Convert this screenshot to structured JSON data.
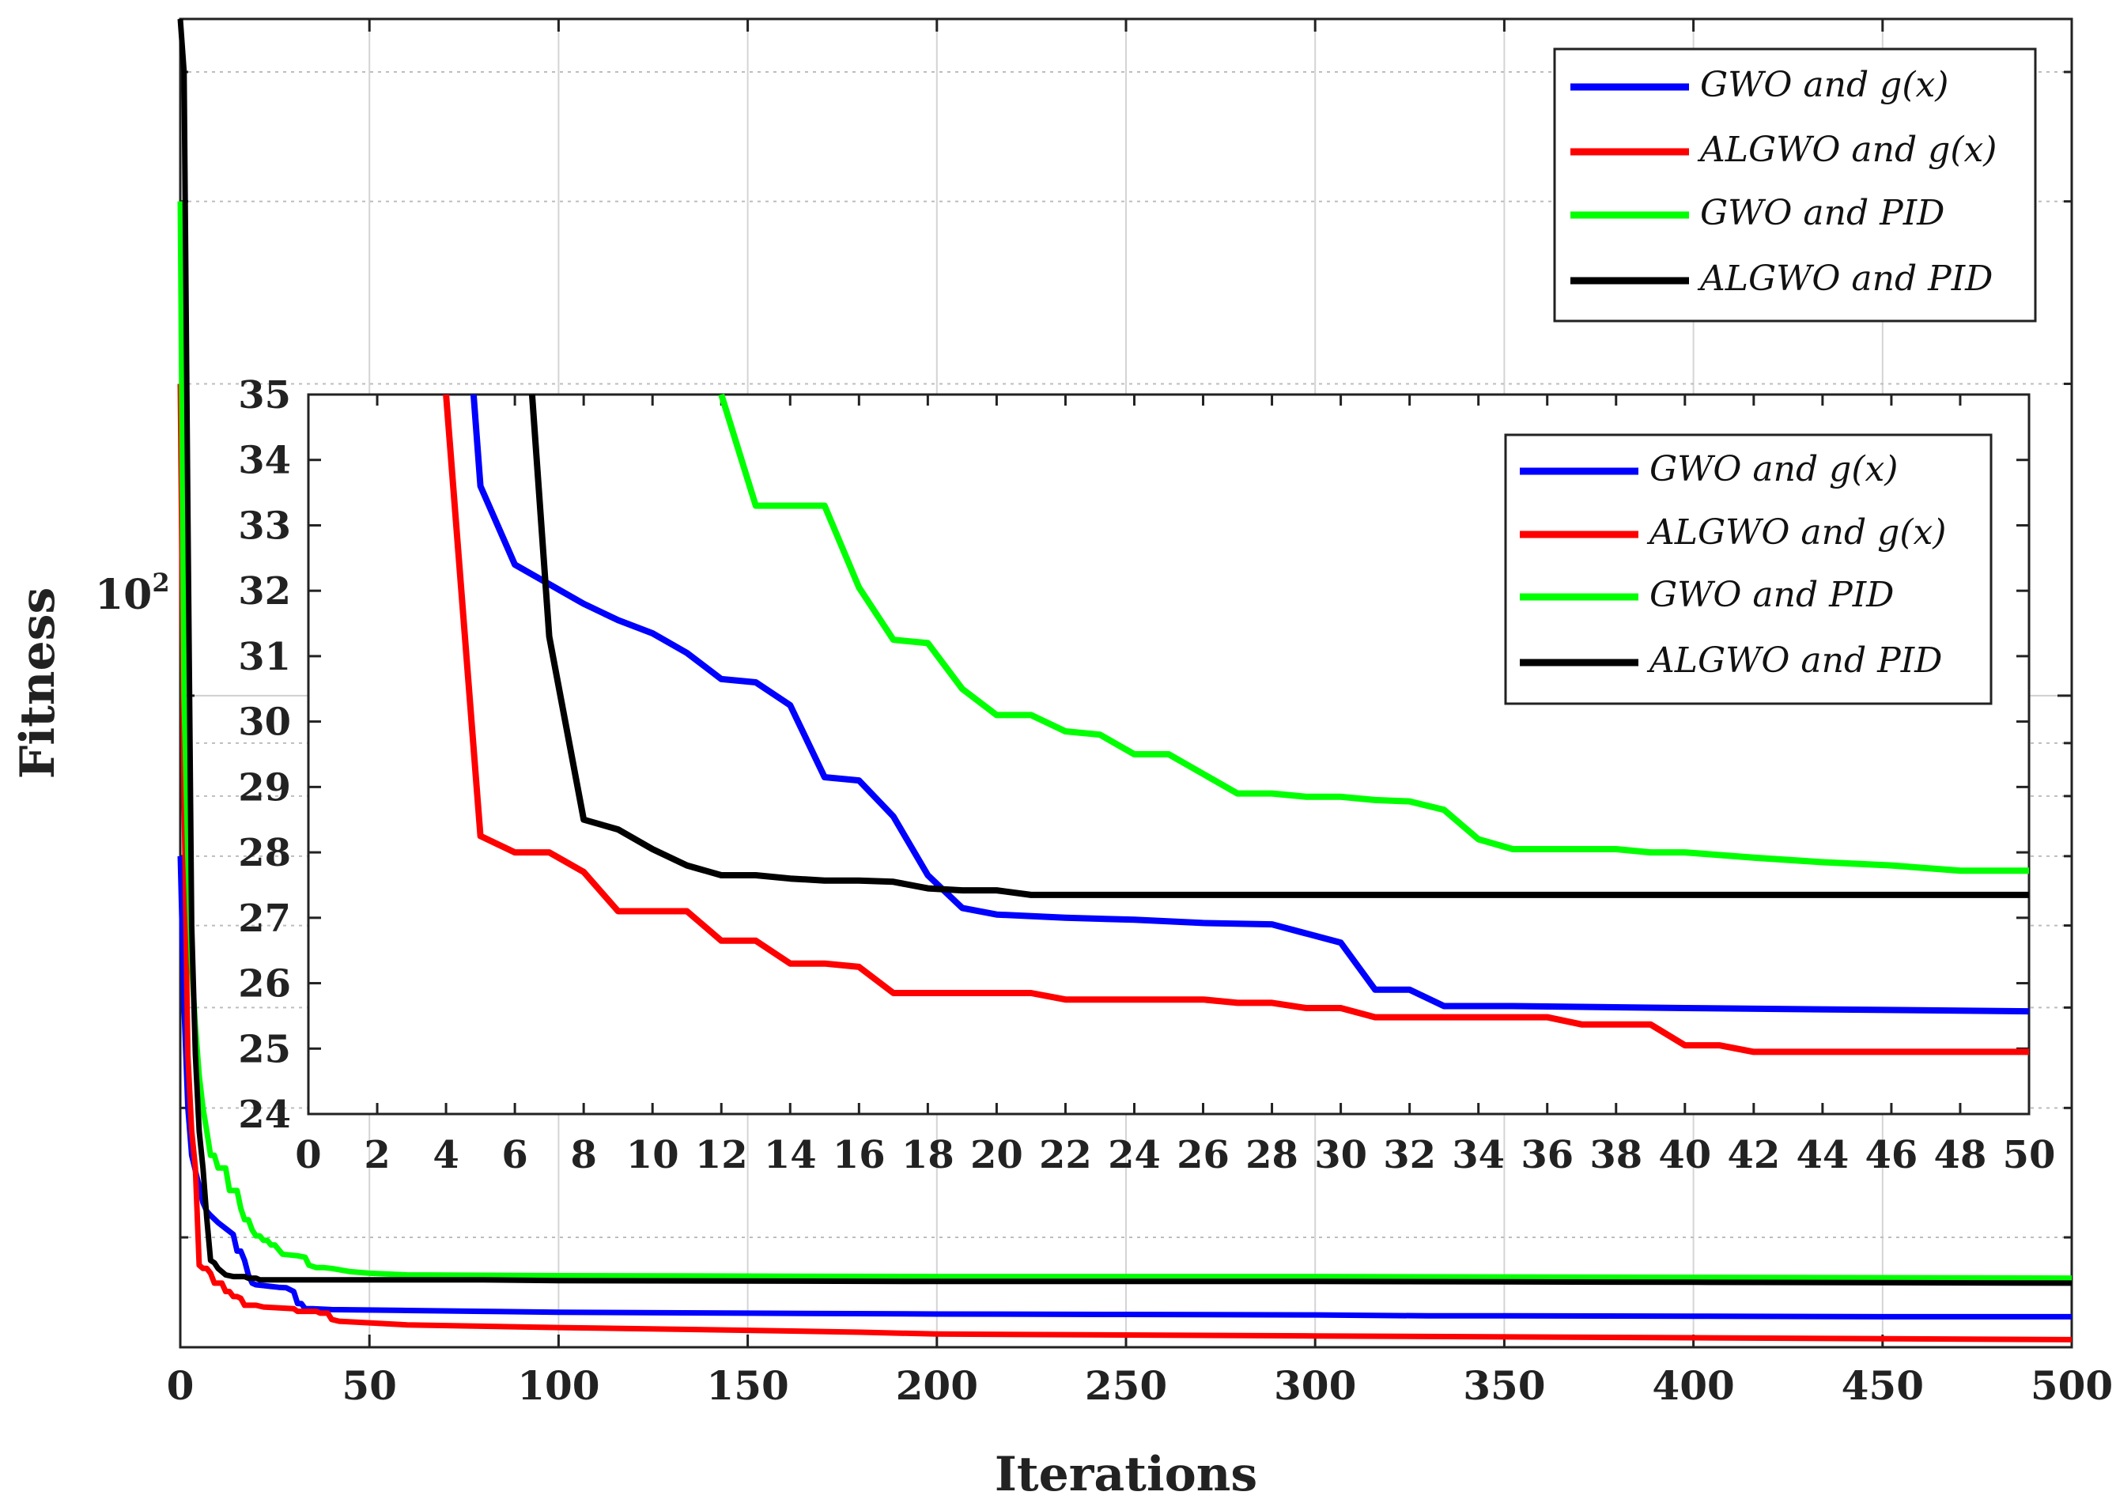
{
  "chart_data": [
    {
      "id": "main",
      "type": "line",
      "xlabel": "Iterations",
      "ylabel": "Fitness",
      "yscale": "log",
      "xlim": [
        0,
        500
      ],
      "ylim": [
        23.5,
        450
      ],
      "x_ticks": [
        0,
        50,
        100,
        150,
        200,
        250,
        300,
        350,
        400,
        450,
        500
      ],
      "y_tick_label": {
        "base": "10",
        "exp": "2"
      },
      "legend": [
        "GWO and g(x)",
        "ALGWO and g(x)",
        "GWO and PID",
        "ALGWO and PID"
      ],
      "legend_position": "top-right",
      "series": [
        {
          "name": "GWO and g(x)",
          "color": "#0000ff",
          "x": [
            0,
            1,
            2,
            3,
            5,
            6,
            7,
            8,
            10,
            12,
            14,
            15,
            16,
            17,
            18,
            19,
            20,
            22,
            24,
            26,
            28,
            30,
            31,
            32,
            33,
            35,
            40,
            60,
            80,
            100,
            150,
            200,
            250,
            300,
            330,
            350,
            400,
            450,
            500
          ],
          "y": [
            70,
            50,
            40,
            36,
            33.6,
            32.4,
            31.8,
            31.5,
            31.0,
            30.6,
            30.2,
            29.1,
            29.1,
            28.5,
            27.6,
            27.1,
            27.0,
            26.95,
            26.9,
            26.85,
            26.82,
            26.6,
            25.9,
            25.9,
            25.6,
            25.6,
            25.55,
            25.5,
            25.45,
            25.4,
            25.35,
            25.3,
            25.28,
            25.25,
            25.2,
            25.2,
            25.18,
            25.15,
            25.15
          ]
        },
        {
          "name": "ALGWO and g(x)",
          "color": "#ff0000",
          "x": [
            0,
            1,
            2,
            3,
            4,
            5,
            6,
            7,
            8,
            9,
            11,
            12,
            13,
            14,
            15,
            16,
            17,
            20,
            22,
            30,
            31,
            36,
            37,
            39,
            40,
            42,
            60,
            100,
            150,
            180,
            200,
            300,
            400,
            500
          ],
          "y": [
            200,
            80,
            45,
            38,
            35,
            28.2,
            28.0,
            28.0,
            27.7,
            27.1,
            27.1,
            26.6,
            26.6,
            26.3,
            26.3,
            26.2,
            25.8,
            25.8,
            25.7,
            25.6,
            25.45,
            25.45,
            25.35,
            25.35,
            25.0,
            24.9,
            24.7,
            24.55,
            24.4,
            24.3,
            24.2,
            24.1,
            24.0,
            23.9
          ]
        },
        {
          "name": "GWO and PID",
          "color": "#00ff00",
          "x": [
            0,
            1,
            2,
            3,
            4,
            5,
            6,
            7,
            8,
            9,
            10,
            11,
            12,
            13,
            15,
            16,
            17,
            18,
            19,
            20,
            21,
            22,
            23,
            24,
            25,
            27,
            29,
            31,
            33,
            34,
            36,
            38,
            40,
            45,
            50,
            60,
            100,
            200,
            300,
            400,
            500
          ],
          "y": [
            300,
            100,
            70,
            55,
            48,
            43,
            40,
            38,
            36,
            36,
            35,
            35,
            35,
            33.3,
            33.3,
            32.0,
            31.2,
            31.2,
            30.5,
            30.1,
            30.1,
            29.8,
            29.8,
            29.5,
            29.5,
            28.9,
            28.85,
            28.8,
            28.7,
            28.2,
            28.05,
            28.05,
            28.0,
            27.8,
            27.7,
            27.6,
            27.55,
            27.5,
            27.5,
            27.45,
            27.4
          ]
        },
        {
          "name": "ALGWO and PID",
          "color": "#000000",
          "x": [
            0,
            1,
            2,
            3,
            4,
            5,
            6,
            7,
            8,
            9,
            10,
            11,
            12,
            14,
            17,
            18,
            20,
            21,
            30,
            50,
            80,
            100,
            200,
            300,
            400,
            500
          ],
          "y": [
            450,
            400,
            150,
            60,
            45,
            38,
            35,
            31.3,
            28.5,
            28.35,
            28.0,
            27.8,
            27.6,
            27.5,
            27.5,
            27.4,
            27.4,
            27.3,
            27.3,
            27.3,
            27.3,
            27.25,
            27.2,
            27.2,
            27.15,
            27.1
          ]
        }
      ]
    },
    {
      "id": "inset",
      "type": "line",
      "xlim": [
        0,
        50
      ],
      "ylim": [
        24,
        35
      ],
      "x_ticks": [
        0,
        2,
        4,
        6,
        8,
        10,
        12,
        14,
        16,
        18,
        20,
        22,
        24,
        26,
        28,
        30,
        32,
        34,
        36,
        38,
        40,
        42,
        44,
        46,
        48,
        50
      ],
      "y_ticks": [
        24,
        25,
        26,
        27,
        28,
        29,
        30,
        31,
        32,
        33,
        34,
        35
      ],
      "legend": [
        "GWO and g(x)",
        "ALGWO and g(x)",
        "GWO and PID",
        "ALGWO and PID"
      ],
      "legend_position": "top-right",
      "series": [
        {
          "name": "GWO and g(x)",
          "color": "#0000ff",
          "x": [
            4.8,
            5,
            6,
            7,
            8,
            9,
            10,
            11,
            12,
            13,
            14,
            15,
            16,
            17,
            18,
            19,
            20,
            22,
            24,
            26,
            28,
            30,
            31,
            32,
            33,
            35,
            40,
            50
          ],
          "y": [
            35,
            33.6,
            32.4,
            32.1,
            31.8,
            31.55,
            31.35,
            31.05,
            30.65,
            30.6,
            30.25,
            29.15,
            29.1,
            28.55,
            27.65,
            27.15,
            27.05,
            27.0,
            26.97,
            26.92,
            26.9,
            26.62,
            25.9,
            25.9,
            25.65,
            25.65,
            25.62,
            25.57
          ]
        },
        {
          "name": "ALGWO and g(x)",
          "color": "#ff0000",
          "x": [
            4,
            5,
            6,
            7,
            8,
            9,
            10,
            11,
            12,
            13,
            14,
            15,
            16,
            17,
            18,
            20,
            21,
            22,
            26,
            27,
            28,
            29,
            30,
            31,
            36,
            37,
            39,
            40,
            41,
            42,
            50
          ],
          "y": [
            35,
            28.25,
            28.0,
            28.0,
            27.7,
            27.1,
            27.1,
            27.1,
            26.65,
            26.65,
            26.3,
            26.3,
            26.25,
            25.85,
            25.85,
            25.85,
            25.85,
            25.75,
            25.75,
            25.7,
            25.7,
            25.62,
            25.62,
            25.48,
            25.48,
            25.37,
            25.37,
            25.05,
            25.05,
            24.95,
            24.95
          ]
        },
        {
          "name": "GWO and PID",
          "color": "#00ff00",
          "x": [
            12,
            13,
            14,
            15,
            16,
            17,
            18,
            19,
            20,
            21,
            22,
            23,
            24,
            25,
            26,
            27,
            28,
            29,
            30,
            31,
            32,
            33,
            34,
            35,
            38,
            39,
            40,
            42,
            44,
            46,
            48,
            50
          ],
          "y": [
            35,
            33.3,
            33.3,
            33.3,
            32.05,
            31.25,
            31.2,
            30.5,
            30.1,
            30.1,
            29.85,
            29.8,
            29.5,
            29.5,
            29.2,
            28.9,
            28.9,
            28.85,
            28.85,
            28.8,
            28.78,
            28.65,
            28.2,
            28.05,
            28.05,
            28.0,
            28.0,
            27.92,
            27.85,
            27.8,
            27.72,
            27.72
          ]
        },
        {
          "name": "ALGWO and PID",
          "color": "#000000",
          "x": [
            6.5,
            7,
            8,
            9,
            10,
            11,
            12,
            13,
            14,
            15,
            16,
            17,
            18,
            19,
            20,
            21,
            22,
            50
          ],
          "y": [
            35,
            31.3,
            28.5,
            28.35,
            28.05,
            27.8,
            27.65,
            27.65,
            27.6,
            27.57,
            27.57,
            27.55,
            27.45,
            27.42,
            27.42,
            27.35,
            27.35,
            27.35
          ]
        }
      ]
    }
  ]
}
